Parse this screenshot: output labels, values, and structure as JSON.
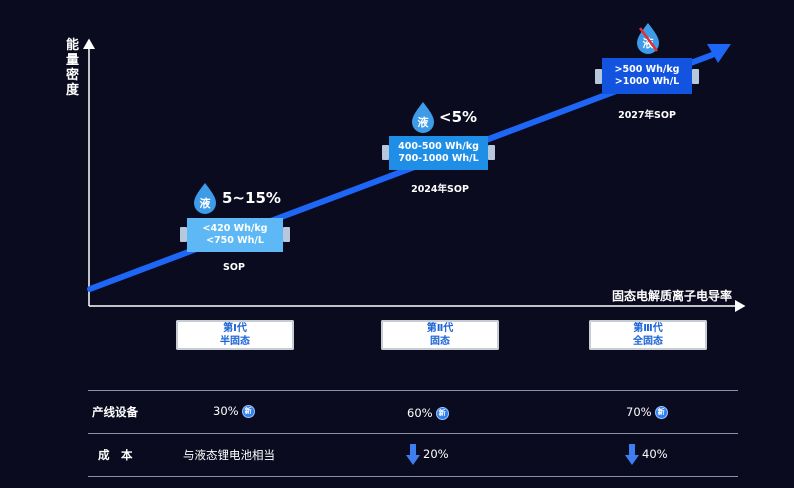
{
  "y_axis_label": "能量密度",
  "x_axis_label": "固态电解质离子电导率",
  "liquid_icon_label": "液",
  "milestones": [
    {
      "liquid_ratio": "5~15%",
      "spec1": "<420 Wh/kg",
      "spec2": "<750 Wh/L",
      "sop": "SOP"
    },
    {
      "liquid_ratio": "<5%",
      "spec1": "400-500 Wh/kg",
      "spec2": "700-1000 Wh/L",
      "sop": "2024年SOP"
    },
    {
      "liquid_ratio": "",
      "liquid_free": true,
      "spec1": ">500 Wh/kg",
      "spec2": ">1000 Wh/L",
      "sop": "2027年SOP"
    }
  ],
  "generations": [
    {
      "line1": "第Ⅰ代",
      "line2": "半固态"
    },
    {
      "line1": "第Ⅱ代",
      "line2": "固态"
    },
    {
      "line1": "第Ⅲ代",
      "line2": "全固态"
    }
  ],
  "table": {
    "rows": [
      {
        "label": "产线设备",
        "cells": [
          "30%",
          "60%",
          "70%"
        ],
        "badge": "新"
      },
      {
        "label": "成　本",
        "cells": [
          "与液态锂电池相当",
          "20%",
          "40%"
        ]
      }
    ]
  },
  "colors": {
    "background": "#0b0b1f",
    "trend_arrow": "#1e66f5",
    "battery_light": "#5db8f5",
    "battery_mid": "#1f8ee6",
    "battery_dark": "#1254e0",
    "down_arrow": "#3f7ef0",
    "forbidden": "#e03030"
  }
}
